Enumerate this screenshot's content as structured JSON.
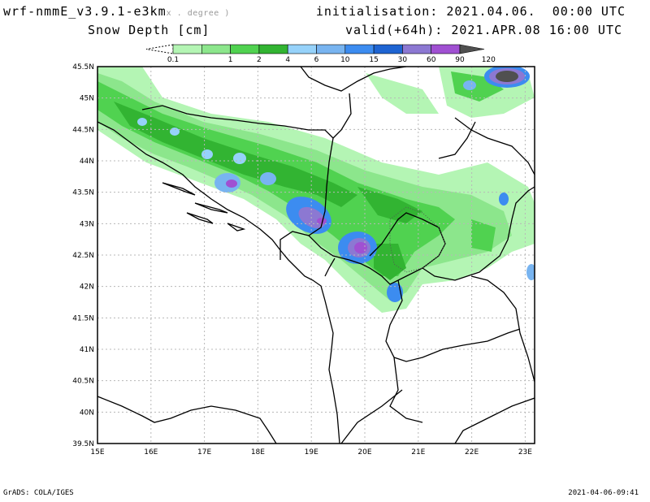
{
  "header": {
    "model": "wrf-nmmE_v3.9.1-e3km",
    "model_sub": "x . degree )",
    "variable": "Snow Depth [cm]",
    "init": "initialisation: 2021.04.06.  00:00 UTC",
    "valid": "valid(+64h): 2021.APR.08 16:00 UTC"
  },
  "legend": {
    "labels": [
      "0.1",
      "1",
      "2",
      "4",
      "6",
      "10",
      "15",
      "30",
      "60",
      "90",
      "120"
    ],
    "colors": [
      "#b4f5b4",
      "#8ce68c",
      "#50d250",
      "#32b432",
      "#96d2fa",
      "#78b4f0",
      "#3c8cf0",
      "#1e64d2",
      "#8c78d2",
      "#a050d2",
      "#505050"
    ]
  },
  "axes": {
    "lon_labels": [
      "15E",
      "16E",
      "17E",
      "18E",
      "19E",
      "20E",
      "21E",
      "22E",
      "23E"
    ],
    "lat_labels": [
      "45.5N",
      "45N",
      "44.5N",
      "44N",
      "43.5N",
      "43N",
      "42.5N",
      "42N",
      "41.5N",
      "41N",
      "40.5N",
      "40N",
      "39.5N"
    ]
  },
  "footer": {
    "left": "GrADS: COLA/IGES",
    "right": "2021-04-06-09:41"
  }
}
